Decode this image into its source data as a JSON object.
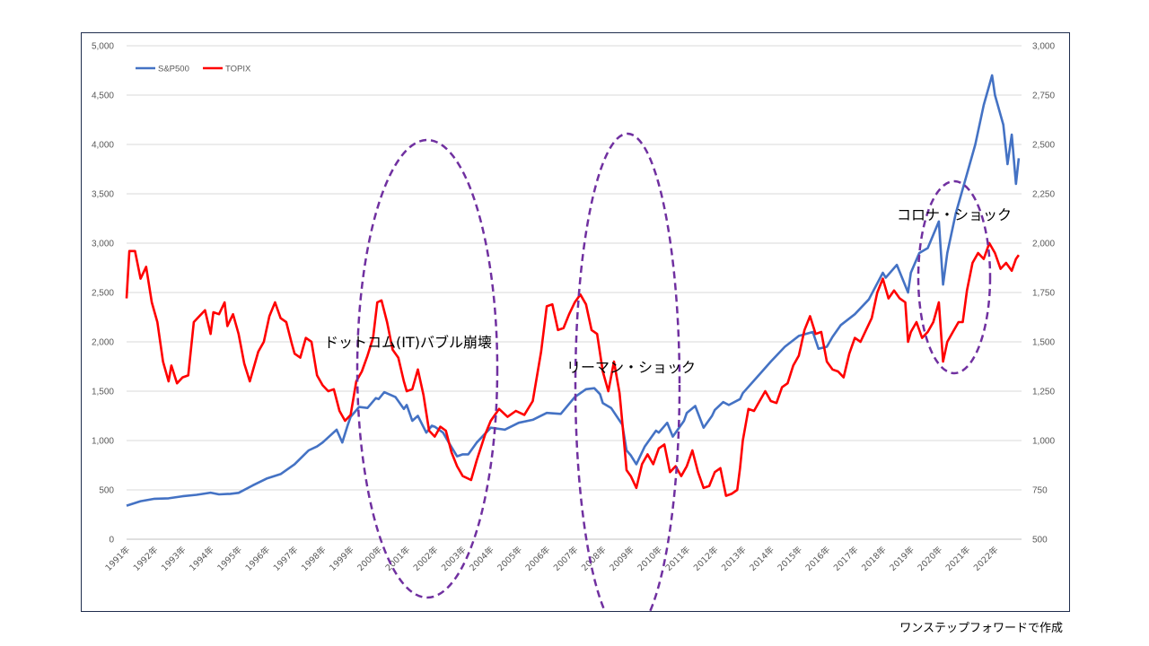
{
  "chart_data": {
    "type": "line",
    "title": "",
    "left_axis": {
      "min": 0,
      "max": 5000,
      "ticks": [
        "0",
        "500",
        "1,000",
        "1,500",
        "2,000",
        "2,500",
        "3,000",
        "3,500",
        "4,000",
        "4,500",
        "5,000"
      ]
    },
    "right_axis": {
      "min": 500,
      "max": 3000,
      "ticks": [
        "500",
        "750",
        "1,000",
        "1,250",
        "1,500",
        "1,750",
        "2,000",
        "2,250",
        "2,500",
        "2,750",
        "3,000"
      ]
    },
    "x_start": 1991.0,
    "x_end": 2022.95,
    "x_ticks": [
      "1991年",
      "1992年",
      "1993年",
      "1994年",
      "1995年",
      "1996年",
      "1997年",
      "1998年",
      "1999年",
      "2000年",
      "2001年",
      "2002年",
      "2003年",
      "2004年",
      "2005年",
      "2006年",
      "2007年",
      "2008年",
      "2009年",
      "2010年",
      "2011年",
      "2012年",
      "2013年",
      "2014年",
      "2015年",
      "2016年",
      "2017年",
      "2018年",
      "2019年",
      "2020年",
      "2021年",
      "2022年"
    ],
    "grid": true,
    "legend_position": "top-left",
    "series": [
      {
        "name": "S&P500",
        "axis": "left",
        "color": "#4472C4",
        "points": [
          [
            1991.0,
            340
          ],
          [
            1991.5,
            385
          ],
          [
            1992.0,
            410
          ],
          [
            1992.5,
            415
          ],
          [
            1993.0,
            435
          ],
          [
            1993.5,
            450
          ],
          [
            1994.0,
            472
          ],
          [
            1994.3,
            455
          ],
          [
            1994.7,
            460
          ],
          [
            1995.0,
            470
          ],
          [
            1995.5,
            545
          ],
          [
            1996.0,
            615
          ],
          [
            1996.5,
            660
          ],
          [
            1997.0,
            760
          ],
          [
            1997.5,
            900
          ],
          [
            1997.8,
            940
          ],
          [
            1998.0,
            980
          ],
          [
            1998.5,
            1110
          ],
          [
            1998.7,
            980
          ],
          [
            1998.9,
            1160
          ],
          [
            1999.0,
            1240
          ],
          [
            1999.3,
            1340
          ],
          [
            1999.6,
            1330
          ],
          [
            1999.9,
            1430
          ],
          [
            2000.0,
            1420
          ],
          [
            2000.2,
            1490
          ],
          [
            2000.6,
            1440
          ],
          [
            2000.9,
            1320
          ],
          [
            2001.0,
            1360
          ],
          [
            2001.2,
            1200
          ],
          [
            2001.4,
            1250
          ],
          [
            2001.7,
            1080
          ],
          [
            2001.9,
            1150
          ],
          [
            2002.0,
            1140
          ],
          [
            2002.3,
            1080
          ],
          [
            2002.5,
            980
          ],
          [
            2002.8,
            840
          ],
          [
            2003.0,
            860
          ],
          [
            2003.2,
            860
          ],
          [
            2003.5,
            980
          ],
          [
            2004.0,
            1130
          ],
          [
            2004.5,
            1110
          ],
          [
            2005.0,
            1180
          ],
          [
            2005.5,
            1210
          ],
          [
            2006.0,
            1280
          ],
          [
            2006.5,
            1270
          ],
          [
            2007.0,
            1440
          ],
          [
            2007.4,
            1520
          ],
          [
            2007.7,
            1530
          ],
          [
            2007.9,
            1470
          ],
          [
            2008.0,
            1380
          ],
          [
            2008.3,
            1330
          ],
          [
            2008.7,
            1160
          ],
          [
            2008.85,
            900
          ],
          [
            2009.0,
            850
          ],
          [
            2009.2,
            760
          ],
          [
            2009.5,
            940
          ],
          [
            2009.9,
            1100
          ],
          [
            2010.0,
            1080
          ],
          [
            2010.3,
            1180
          ],
          [
            2010.5,
            1040
          ],
          [
            2010.9,
            1200
          ],
          [
            2011.0,
            1280
          ],
          [
            2011.3,
            1350
          ],
          [
            2011.6,
            1130
          ],
          [
            2011.9,
            1250
          ],
          [
            2012.0,
            1310
          ],
          [
            2012.3,
            1390
          ],
          [
            2012.5,
            1360
          ],
          [
            2012.9,
            1420
          ],
          [
            2013.0,
            1480
          ],
          [
            2013.5,
            1640
          ],
          [
            2014.0,
            1800
          ],
          [
            2014.5,
            1950
          ],
          [
            2015.0,
            2060
          ],
          [
            2015.5,
            2100
          ],
          [
            2015.7,
            1930
          ],
          [
            2016.0,
            1950
          ],
          [
            2016.2,
            2050
          ],
          [
            2016.5,
            2170
          ],
          [
            2017.0,
            2280
          ],
          [
            2017.5,
            2430
          ],
          [
            2018.0,
            2700
          ],
          [
            2018.1,
            2650
          ],
          [
            2018.5,
            2780
          ],
          [
            2018.9,
            2500
          ],
          [
            2019.0,
            2700
          ],
          [
            2019.3,
            2900
          ],
          [
            2019.6,
            2950
          ],
          [
            2020.0,
            3220
          ],
          [
            2020.15,
            2580
          ],
          [
            2020.3,
            2900
          ],
          [
            2020.6,
            3300
          ],
          [
            2021.0,
            3700
          ],
          [
            2021.3,
            4000
          ],
          [
            2021.6,
            4400
          ],
          [
            2021.9,
            4700
          ],
          [
            2022.0,
            4500
          ],
          [
            2022.3,
            4200
          ],
          [
            2022.45,
            3800
          ],
          [
            2022.6,
            4100
          ],
          [
            2022.75,
            3600
          ],
          [
            2022.85,
            3860
          ]
        ]
      },
      {
        "name": "TOPIX",
        "axis": "right",
        "color": "#FF0000",
        "points": [
          [
            1991.0,
            1720
          ],
          [
            1991.1,
            1960
          ],
          [
            1991.3,
            1960
          ],
          [
            1991.5,
            1820
          ],
          [
            1991.7,
            1880
          ],
          [
            1991.9,
            1700
          ],
          [
            1992.1,
            1600
          ],
          [
            1992.3,
            1400
          ],
          [
            1992.5,
            1300
          ],
          [
            1992.6,
            1380
          ],
          [
            1992.8,
            1290
          ],
          [
            1993.0,
            1320
          ],
          [
            1993.2,
            1330
          ],
          [
            1993.4,
            1600
          ],
          [
            1993.6,
            1630
          ],
          [
            1993.8,
            1660
          ],
          [
            1994.0,
            1540
          ],
          [
            1994.1,
            1650
          ],
          [
            1994.3,
            1640
          ],
          [
            1994.5,
            1700
          ],
          [
            1994.6,
            1580
          ],
          [
            1994.8,
            1640
          ],
          [
            1995.0,
            1540
          ],
          [
            1995.2,
            1390
          ],
          [
            1995.4,
            1300
          ],
          [
            1995.7,
            1450
          ],
          [
            1995.9,
            1500
          ],
          [
            1996.1,
            1630
          ],
          [
            1996.3,
            1700
          ],
          [
            1996.5,
            1620
          ],
          [
            1996.7,
            1600
          ],
          [
            1996.9,
            1490
          ],
          [
            1997.0,
            1440
          ],
          [
            1997.2,
            1420
          ],
          [
            1997.4,
            1520
          ],
          [
            1997.6,
            1500
          ],
          [
            1997.8,
            1330
          ],
          [
            1998.0,
            1280
          ],
          [
            1998.2,
            1250
          ],
          [
            1998.4,
            1260
          ],
          [
            1998.6,
            1150
          ],
          [
            1998.8,
            1100
          ],
          [
            1999.0,
            1130
          ],
          [
            1999.2,
            1300
          ],
          [
            1999.4,
            1350
          ],
          [
            1999.6,
            1430
          ],
          [
            1999.8,
            1520
          ],
          [
            1999.95,
            1700
          ],
          [
            2000.1,
            1710
          ],
          [
            2000.3,
            1600
          ],
          [
            2000.5,
            1460
          ],
          [
            2000.7,
            1420
          ],
          [
            2000.9,
            1300
          ],
          [
            2001.0,
            1250
          ],
          [
            2001.2,
            1260
          ],
          [
            2001.4,
            1360
          ],
          [
            2001.6,
            1230
          ],
          [
            2001.8,
            1050
          ],
          [
            2002.0,
            1020
          ],
          [
            2002.2,
            1070
          ],
          [
            2002.4,
            1050
          ],
          [
            2002.6,
            940
          ],
          [
            2002.8,
            870
          ],
          [
            2003.0,
            820
          ],
          [
            2003.3,
            800
          ],
          [
            2003.5,
            900
          ],
          [
            2003.8,
            1030
          ],
          [
            2004.0,
            1100
          ],
          [
            2004.3,
            1160
          ],
          [
            2004.6,
            1120
          ],
          [
            2004.9,
            1150
          ],
          [
            2005.2,
            1130
          ],
          [
            2005.5,
            1200
          ],
          [
            2005.8,
            1450
          ],
          [
            2006.0,
            1680
          ],
          [
            2006.2,
            1690
          ],
          [
            2006.4,
            1560
          ],
          [
            2006.6,
            1570
          ],
          [
            2006.8,
            1640
          ],
          [
            2007.0,
            1700
          ],
          [
            2007.2,
            1740
          ],
          [
            2007.4,
            1690
          ],
          [
            2007.6,
            1560
          ],
          [
            2007.8,
            1540
          ],
          [
            2008.0,
            1350
          ],
          [
            2008.2,
            1250
          ],
          [
            2008.4,
            1400
          ],
          [
            2008.6,
            1240
          ],
          [
            2008.7,
            1090
          ],
          [
            2008.85,
            850
          ],
          [
            2009.0,
            820
          ],
          [
            2009.2,
            760
          ],
          [
            2009.4,
            880
          ],
          [
            2009.6,
            930
          ],
          [
            2009.8,
            880
          ],
          [
            2010.0,
            960
          ],
          [
            2010.2,
            980
          ],
          [
            2010.4,
            840
          ],
          [
            2010.6,
            870
          ],
          [
            2010.8,
            820
          ],
          [
            2011.0,
            870
          ],
          [
            2011.2,
            950
          ],
          [
            2011.4,
            840
          ],
          [
            2011.6,
            760
          ],
          [
            2011.8,
            770
          ],
          [
            2012.0,
            840
          ],
          [
            2012.2,
            860
          ],
          [
            2012.4,
            720
          ],
          [
            2012.6,
            730
          ],
          [
            2012.8,
            750
          ],
          [
            2012.9,
            860
          ],
          [
            2013.0,
            1000
          ],
          [
            2013.2,
            1160
          ],
          [
            2013.4,
            1150
          ],
          [
            2013.6,
            1200
          ],
          [
            2013.8,
            1250
          ],
          [
            2014.0,
            1200
          ],
          [
            2014.2,
            1190
          ],
          [
            2014.4,
            1270
          ],
          [
            2014.6,
            1290
          ],
          [
            2014.8,
            1380
          ],
          [
            2015.0,
            1430
          ],
          [
            2015.2,
            1560
          ],
          [
            2015.4,
            1630
          ],
          [
            2015.6,
            1540
          ],
          [
            2015.8,
            1550
          ],
          [
            2016.0,
            1400
          ],
          [
            2016.2,
            1360
          ],
          [
            2016.4,
            1350
          ],
          [
            2016.6,
            1320
          ],
          [
            2016.8,
            1440
          ],
          [
            2017.0,
            1520
          ],
          [
            2017.2,
            1500
          ],
          [
            2017.4,
            1560
          ],
          [
            2017.6,
            1620
          ],
          [
            2017.8,
            1750
          ],
          [
            2018.0,
            1820
          ],
          [
            2018.2,
            1720
          ],
          [
            2018.4,
            1760
          ],
          [
            2018.6,
            1720
          ],
          [
            2018.8,
            1700
          ],
          [
            2018.9,
            1500
          ],
          [
            2019.0,
            1550
          ],
          [
            2019.2,
            1600
          ],
          [
            2019.4,
            1520
          ],
          [
            2019.6,
            1550
          ],
          [
            2019.8,
            1600
          ],
          [
            2020.0,
            1700
          ],
          [
            2020.15,
            1400
          ],
          [
            2020.3,
            1500
          ],
          [
            2020.5,
            1550
          ],
          [
            2020.7,
            1600
          ],
          [
            2020.85,
            1600
          ],
          [
            2021.0,
            1760
          ],
          [
            2021.2,
            1900
          ],
          [
            2021.4,
            1950
          ],
          [
            2021.6,
            1920
          ],
          [
            2021.8,
            2000
          ],
          [
            2022.0,
            1950
          ],
          [
            2022.2,
            1870
          ],
          [
            2022.4,
            1900
          ],
          [
            2022.6,
            1860
          ],
          [
            2022.75,
            1920
          ],
          [
            2022.85,
            1940
          ]
        ]
      }
    ],
    "annotations": [
      {
        "text": "ドットコム(IT)バブル崩壊"
      },
      {
        "text": "リーマン・ショック"
      },
      {
        "text": "コロナ・ショック"
      }
    ]
  },
  "footer": {
    "credit": "ワンステップフォワードで作成"
  }
}
